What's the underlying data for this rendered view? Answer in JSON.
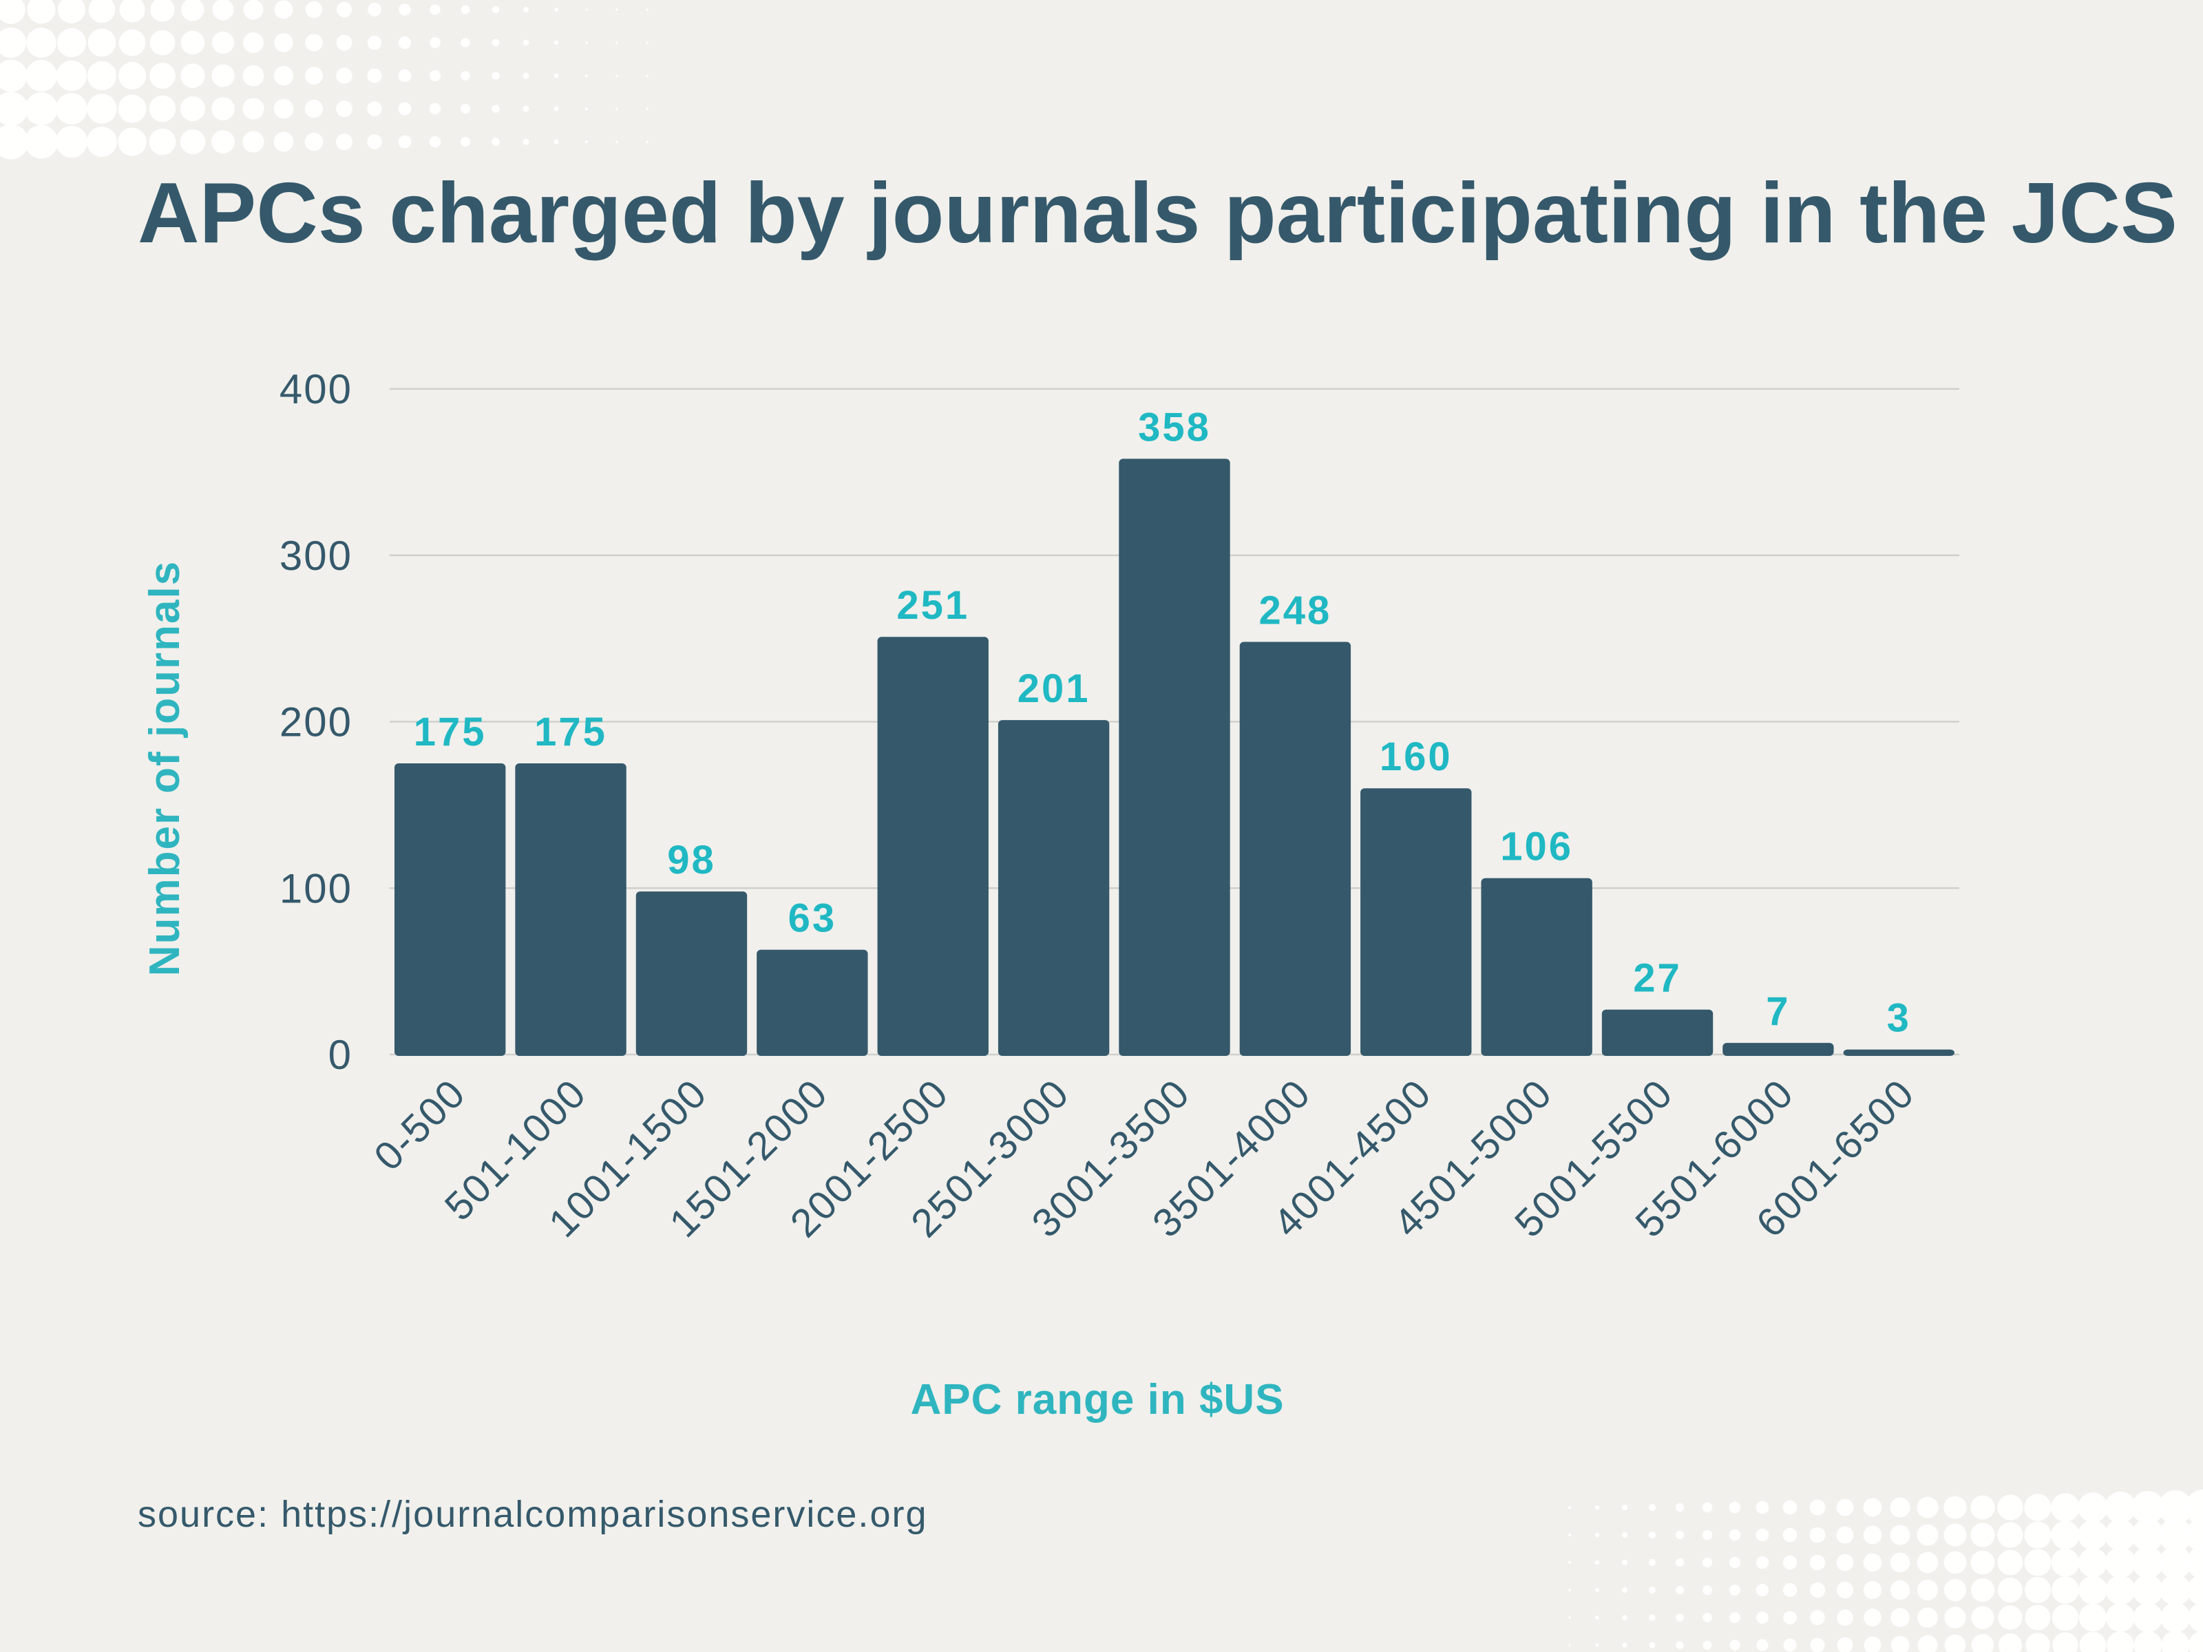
{
  "chart_data": {
    "type": "bar",
    "title": "APCs charged by journals participating in the JCS",
    "xlabel": "APC range in $US",
    "ylabel": "Number of journals",
    "categories": [
      "0-500",
      "501-1000",
      "1001-1500",
      "1501-2000",
      "2001-2500",
      "2501-3000",
      "3001-3500",
      "3501-4000",
      "4001-4500",
      "4501-5000",
      "5001-5500",
      "5501-6000",
      "6001-6500"
    ],
    "values": [
      175,
      175,
      98,
      63,
      251,
      201,
      358,
      248,
      160,
      106,
      27,
      7,
      3
    ],
    "data_labels": [
      "175",
      "175",
      "98",
      "63",
      "251",
      "201",
      "358",
      "248",
      "160",
      "106",
      "27",
      "7",
      "3"
    ],
    "yticks": [
      0,
      100,
      200,
      300,
      400
    ],
    "ytick_labels": [
      "0",
      "100",
      "200",
      "300",
      "400"
    ],
    "ylim": [
      0,
      400
    ],
    "grid": true,
    "legend": "none",
    "colors": {
      "bar": "#35596b",
      "data_label": "#1fb8c3",
      "axis_label": "#2fb5bf",
      "text": "#35596b",
      "grid": "#cfd0cd",
      "background": "#f1f0ec"
    }
  },
  "source": "source: https://journalcomparisonservice.org"
}
